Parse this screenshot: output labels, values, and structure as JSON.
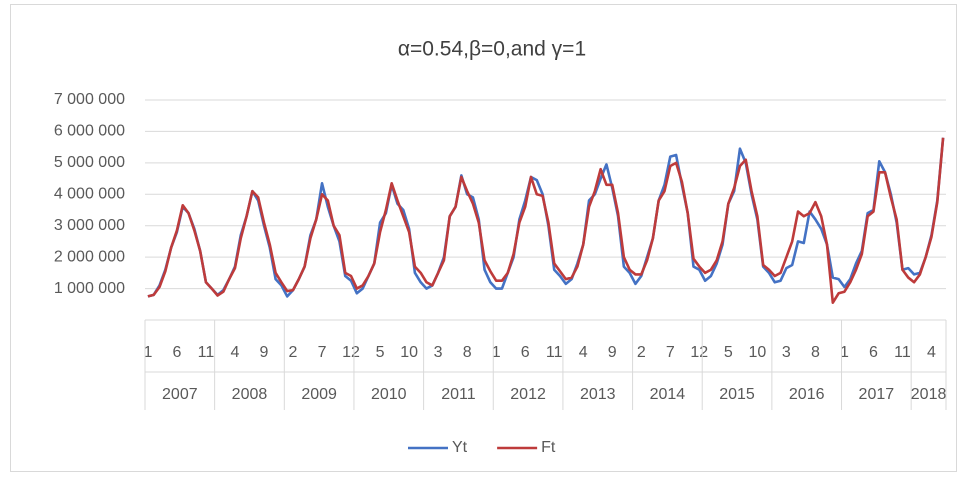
{
  "chart_data": {
    "type": "line",
    "title": "α=0.54,β=0,and γ=1",
    "categories": [
      "1",
      null,
      null,
      null,
      null,
      "6",
      null,
      null,
      null,
      null,
      "11",
      null,
      null,
      null,
      null,
      "4",
      null,
      null,
      null,
      null,
      "9",
      null,
      null,
      null,
      null,
      "2",
      null,
      null,
      null,
      null,
      "7",
      null,
      null,
      null,
      null,
      "12",
      null,
      null,
      null,
      null,
      "5",
      null,
      null,
      null,
      null,
      "10",
      null,
      null,
      null,
      null,
      "3",
      null,
      null,
      null,
      null,
      "8",
      null,
      null,
      null,
      null,
      "1",
      null,
      null,
      null,
      null,
      "6",
      null,
      null,
      null,
      null,
      "11",
      null,
      null,
      null,
      null,
      "4",
      null,
      null,
      null,
      null,
      "9",
      null,
      null,
      null,
      null,
      "2",
      null,
      null,
      null,
      null,
      "7",
      null,
      null,
      null,
      null,
      "12",
      null,
      null,
      null,
      null,
      "5",
      null,
      null,
      null,
      null,
      "10",
      null,
      null,
      null,
      null,
      "3",
      null,
      null,
      null,
      null,
      "8",
      null,
      null,
      null,
      null,
      "1",
      null,
      null,
      null,
      null,
      "6",
      null,
      null,
      null,
      null,
      "11",
      null,
      null,
      null,
      null,
      "4",
      null,
      null
    ],
    "year_groups": [
      "2007",
      "2008",
      "2009",
      "2010",
      "2011",
      "2012",
      "2013",
      "2014",
      "2015",
      "2016",
      "2017",
      "2018"
    ],
    "series": [
      {
        "name": "Yt",
        "color": "#4472c4",
        "values": [
          750000,
          800000,
          1100000,
          1600000,
          2300000,
          2800000,
          3600000,
          3400000,
          2900000,
          2200000,
          1200000,
          1000000,
          800000,
          950000,
          1300000,
          1700000,
          2700000,
          3300000,
          4100000,
          3800000,
          3000000,
          2300000,
          1300000,
          1100000,
          750000,
          950000,
          1300000,
          1700000,
          2700000,
          3200000,
          4350000,
          3600000,
          3000000,
          2500000,
          1400000,
          1250000,
          850000,
          1000000,
          1400000,
          1800000,
          3100000,
          3400000,
          4300000,
          3700000,
          3500000,
          2900000,
          1500000,
          1200000,
          1000000,
          1100000,
          1500000,
          2000000,
          3300000,
          3600000,
          4600000,
          4000000,
          3900000,
          3200000,
          1600000,
          1200000,
          1000000,
          1000000,
          1500000,
          2000000,
          3200000,
          3800000,
          4550000,
          4450000,
          4000000,
          3000000,
          1600000,
          1400000,
          1150000,
          1300000,
          1800000,
          2400000,
          3800000,
          4000000,
          4500000,
          4950000,
          4200000,
          3300000,
          1700000,
          1500000,
          1150000,
          1400000,
          2000000,
          2600000,
          3800000,
          4300000,
          5200000,
          5250000,
          4300000,
          3400000,
          1700000,
          1600000,
          1250000,
          1400000,
          1800000,
          2400000,
          3700000,
          4100000,
          5450000,
          5000000,
          4000000,
          3200000,
          1700000,
          1500000,
          1200000,
          1250000,
          1650000,
          1750000,
          2500000,
          2450000,
          3450000,
          3200000,
          2900000,
          2400000,
          1350000,
          1300000,
          1050000,
          1300000,
          1800000,
          2200000,
          3400000,
          3500000,
          5050000,
          4700000,
          4000000,
          3100000,
          1600000,
          1650000,
          1450000,
          1500000,
          2000000,
          2700000,
          3800000,
          5800000
        ]
      },
      {
        "name": "Ft",
        "color": "#be3b3b",
        "values": [
          750000,
          800000,
          1050000,
          1550000,
          2300000,
          2850000,
          3650000,
          3400000,
          2850000,
          2200000,
          1200000,
          1000000,
          780000,
          900000,
          1300000,
          1650000,
          2600000,
          3300000,
          4100000,
          3900000,
          3100000,
          2400000,
          1500000,
          1200000,
          920000,
          950000,
          1300000,
          1700000,
          2600000,
          3200000,
          4000000,
          3800000,
          3000000,
          2700000,
          1500000,
          1400000,
          1000000,
          1100000,
          1400000,
          1800000,
          2800000,
          3500000,
          4350000,
          3800000,
          3300000,
          2800000,
          1700000,
          1500000,
          1200000,
          1100000,
          1500000,
          1900000,
          3300000,
          3600000,
          4550000,
          4100000,
          3700000,
          3100000,
          1900000,
          1550000,
          1250000,
          1250000,
          1500000,
          2100000,
          3100000,
          3600000,
          4550000,
          4000000,
          3950000,
          3100000,
          1800000,
          1550000,
          1300000,
          1350000,
          1700000,
          2400000,
          3600000,
          4100000,
          4800000,
          4300000,
          4300000,
          3400000,
          2000000,
          1600000,
          1450000,
          1450000,
          1900000,
          2600000,
          3800000,
          4100000,
          4900000,
          5000000,
          4400000,
          3400000,
          1950000,
          1700000,
          1500000,
          1600000,
          1900000,
          2500000,
          3700000,
          4200000,
          4900000,
          5100000,
          4100000,
          3300000,
          1750000,
          1600000,
          1400000,
          1500000,
          2000000,
          2500000,
          3450000,
          3300000,
          3400000,
          3750000,
          3300000,
          2400000,
          550000,
          850000,
          900000,
          1200000,
          1600000,
          2100000,
          3300000,
          3450000,
          4700000,
          4700000,
          3900000,
          3200000,
          1600000,
          1350000,
          1200000,
          1450000,
          2000000,
          2650000,
          3750000,
          5800000
        ]
      }
    ],
    "ylim": [
      0,
      7000000
    ],
    "yticks": [
      {
        "value": 1000000,
        "label": "1 000 000"
      },
      {
        "value": 2000000,
        "label": "2 000 000"
      },
      {
        "value": 3000000,
        "label": "3 000 000"
      },
      {
        "value": 4000000,
        "label": "4 000 000"
      },
      {
        "value": 5000000,
        "label": "5 000 000"
      },
      {
        "value": 6000000,
        "label": "6 000 000"
      },
      {
        "value": 7000000,
        "label": "7 000 000"
      }
    ],
    "grid": true,
    "legend": "bottom"
  }
}
